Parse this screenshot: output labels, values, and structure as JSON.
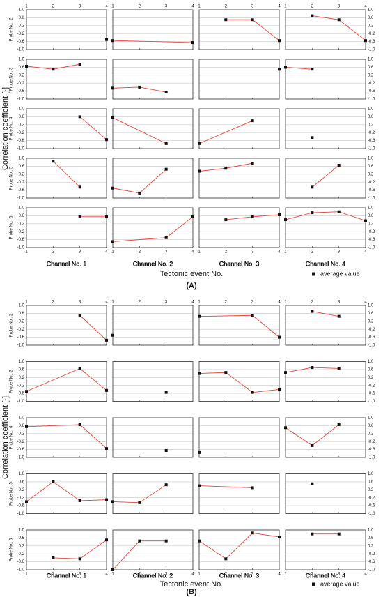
{
  "chart_data": [
    {
      "type": "line",
      "panel_label": "(A)",
      "y_label": "Correlation coefficient [-]",
      "x_label": "Tectonic event No.",
      "rows": [
        "Probe No.: 2",
        "Probe No.: 3",
        "Probe No.: 4",
        "Probe No.: 5",
        "Probe No.: 6"
      ],
      "columns": [
        "Channel No. 1",
        "Channel No. 2",
        "Channel No. 3",
        "Channel No. 4"
      ],
      "series": [
        {
          "name": "average value",
          "color": "#e8403a",
          "marker_color": "#111111"
        }
      ],
      "xlim": [
        1,
        4
      ],
      "xticks": [
        1,
        2,
        3,
        4
      ],
      "ylim": [
        -1,
        1
      ],
      "yticks": [
        {
          "value": 1.0,
          "label": "1.0"
        },
        0.6,
        0.2,
        -0.2,
        -0.6,
        {
          "value": -1.0,
          "label": "-1.0"
        }
      ],
      "grid": true,
      "cells": [
        [
          {
            "x": [
              4
            ],
            "values": [
              -0.5
            ]
          },
          {
            "x": [
              1,
              4
            ],
            "values": [
              -0.55,
              -0.65
            ]
          },
          {
            "x": [
              2,
              3,
              4
            ],
            "values": [
              0.5,
              0.5,
              -0.55
            ]
          },
          {
            "x": [
              2,
              3,
              4
            ],
            "values": [
              0.7,
              0.5,
              -0.55
            ]
          }
        ],
        [
          {
            "x": [
              1,
              2,
              3
            ],
            "values": [
              0.65,
              0.5,
              0.75
            ]
          },
          {
            "x": [
              1,
              2,
              3
            ],
            "values": [
              -0.45,
              -0.4,
              -0.65
            ]
          },
          {
            "x": [
              4
            ],
            "values": [
              0.5
            ]
          },
          {
            "x": [
              1,
              2
            ],
            "values": [
              0.6,
              0.5
            ]
          }
        ],
        [
          {
            "x": [
              3,
              4
            ],
            "values": [
              0.6,
              -0.55
            ]
          },
          {
            "x": [
              1,
              3
            ],
            "values": [
              0.55,
              -0.75
            ]
          },
          {
            "x": [
              1,
              3
            ],
            "values": [
              -0.75,
              0.4
            ]
          },
          {
            "x": [
              2
            ],
            "values": [
              -0.45
            ]
          }
        ],
        [
          {
            "x": [
              2,
              3
            ],
            "values": [
              0.85,
              -0.45
            ]
          },
          {
            "x": [
              1,
              2,
              3
            ],
            "values": [
              -0.5,
              -0.75,
              0.45
            ]
          },
          {
            "x": [
              1,
              2,
              3
            ],
            "values": [
              0.35,
              0.5,
              0.75
            ]
          },
          {
            "x": [
              2,
              3
            ],
            "values": [
              -0.45,
              0.65
            ]
          }
        ],
        [
          {
            "x": [
              3,
              4
            ],
            "values": [
              0.55,
              0.55
            ]
          },
          {
            "x": [
              1,
              3,
              4
            ],
            "values": [
              -0.7,
              -0.5,
              0.55
            ]
          },
          {
            "x": [
              2,
              3,
              4
            ],
            "values": [
              0.4,
              0.55,
              0.65
            ]
          },
          {
            "x": [
              1,
              2,
              3,
              4
            ],
            "values": [
              0.4,
              0.75,
              0.8,
              0.35
            ]
          }
        ]
      ]
    },
    {
      "type": "line",
      "panel_label": "(B)",
      "y_label": "Correlation coefficient [-]",
      "x_label": "Tectonic event No.",
      "rows": [
        "Probe No.: 2",
        "Probe No.: 3",
        "Probe No.: 4",
        "Probe No.: 5",
        "Probe No.: 6"
      ],
      "columns": [
        "Channel No. 1",
        "Channel No. 2",
        "Channel No. 3",
        "Channel No. 4"
      ],
      "series": [
        {
          "name": "average value",
          "color": "#e8403a",
          "marker_color": "#111111"
        }
      ],
      "xlim": [
        1,
        4
      ],
      "xticks": [
        1,
        2,
        3,
        4
      ],
      "ylim": [
        -1,
        1
      ],
      "yticks": [
        {
          "value": 1.0,
          "label": "1.0"
        },
        0.6,
        0.2,
        -0.2,
        -0.6,
        {
          "value": -1.0,
          "label": "-1.0"
        }
      ],
      "grid": true,
      "cells": [
        [
          {
            "x": [
              3,
              4
            ],
            "values": [
              0.5,
              -0.75
            ]
          },
          {
            "x": [
              1
            ],
            "values": [
              -0.5
            ]
          },
          {
            "x": [
              1,
              3,
              4
            ],
            "values": [
              0.45,
              0.5,
              -0.6
            ]
          },
          {
            "x": [
              2,
              3
            ],
            "values": [
              0.7,
              0.45
            ]
          }
        ],
        [
          {
            "x": [
              1,
              3,
              4
            ],
            "values": [
              -0.5,
              0.65,
              -0.45
            ]
          },
          {
            "x": [
              3
            ],
            "values": [
              -0.55
            ]
          },
          {
            "x": [
              1,
              2,
              3,
              4
            ],
            "values": [
              0.4,
              0.45,
              -0.55,
              -0.4
            ]
          },
          {
            "x": [
              1,
              2,
              3
            ],
            "values": [
              0.45,
              0.7,
              0.65
            ]
          }
        ],
        [
          {
            "x": [
              1,
              3,
              4
            ],
            "values": [
              0.55,
              0.65,
              -0.55
            ]
          },
          {
            "x": [
              3
            ],
            "values": [
              -0.65
            ]
          },
          {
            "x": [
              1
            ],
            "values": [
              -0.75
            ]
          },
          {
            "x": [
              1,
              2,
              3
            ],
            "values": [
              0.5,
              -0.4,
              0.65
            ]
          }
        ],
        [
          {
            "x": [
              1,
              2,
              3,
              4
            ],
            "values": [
              -0.4,
              0.6,
              -0.35,
              -0.3
            ]
          },
          {
            "x": [
              1,
              2,
              3
            ],
            "values": [
              -0.4,
              -0.45,
              0.45
            ]
          },
          {
            "x": [
              1,
              3
            ],
            "values": [
              0.4,
              0.3
            ]
          },
          {
            "x": [
              2
            ],
            "values": [
              0.5
            ]
          }
        ],
        [
          {
            "x": [
              2,
              3,
              4
            ],
            "values": [
              -0.4,
              -0.45,
              0.5
            ]
          },
          {
            "x": [
              1,
              2,
              3
            ],
            "values": [
              -1.0,
              0.45,
              0.45
            ]
          },
          {
            "x": [
              1,
              2,
              3,
              4
            ],
            "values": [
              0.45,
              -0.45,
              0.85,
              0.65
            ]
          },
          {
            "x": [
              2,
              3
            ],
            "values": [
              0.8,
              0.8
            ]
          }
        ]
      ]
    }
  ]
}
